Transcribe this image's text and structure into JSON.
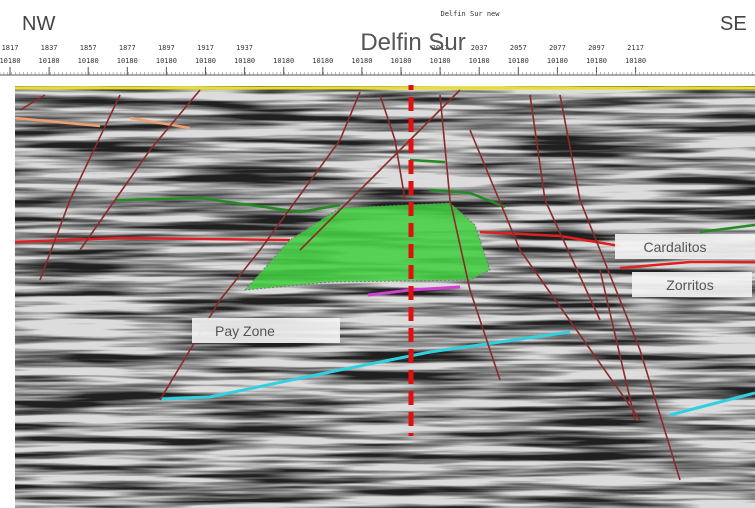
{
  "header": {
    "left": "NW",
    "right": "SE",
    "title": "Delfin Sur",
    "subtitle": "Delfin Sur new"
  },
  "ruler": {
    "columns": [
      {
        "trace": "1817",
        "cdp": "10180"
      },
      {
        "trace": "1837",
        "cdp": "10180"
      },
      {
        "trace": "1857",
        "cdp": "10180"
      },
      {
        "trace": "1877",
        "cdp": "10180"
      },
      {
        "trace": "1897",
        "cdp": "10180"
      },
      {
        "trace": "1917",
        "cdp": "10180"
      },
      {
        "trace": "1937",
        "cdp": "10180"
      },
      {
        "cdp": "10180"
      },
      {
        "cdp": "10180"
      },
      {
        "cdp": "10180"
      },
      {
        "cdp": "10180"
      },
      {
        "trace": "2017",
        "cdp": "10180"
      },
      {
        "trace": "2037",
        "cdp": "10180"
      },
      {
        "trace": "2057",
        "cdp": "10180"
      },
      {
        "trace": "2077",
        "cdp": "10180"
      },
      {
        "trace": "2097",
        "cdp": "10180"
      },
      {
        "trace": "2117",
        "cdp": "10180"
      }
    ]
  },
  "labels": {
    "cardalitos": "Cardalitos",
    "zorritos": "Zorritos",
    "pay_zone": "Pay Zone"
  }
}
